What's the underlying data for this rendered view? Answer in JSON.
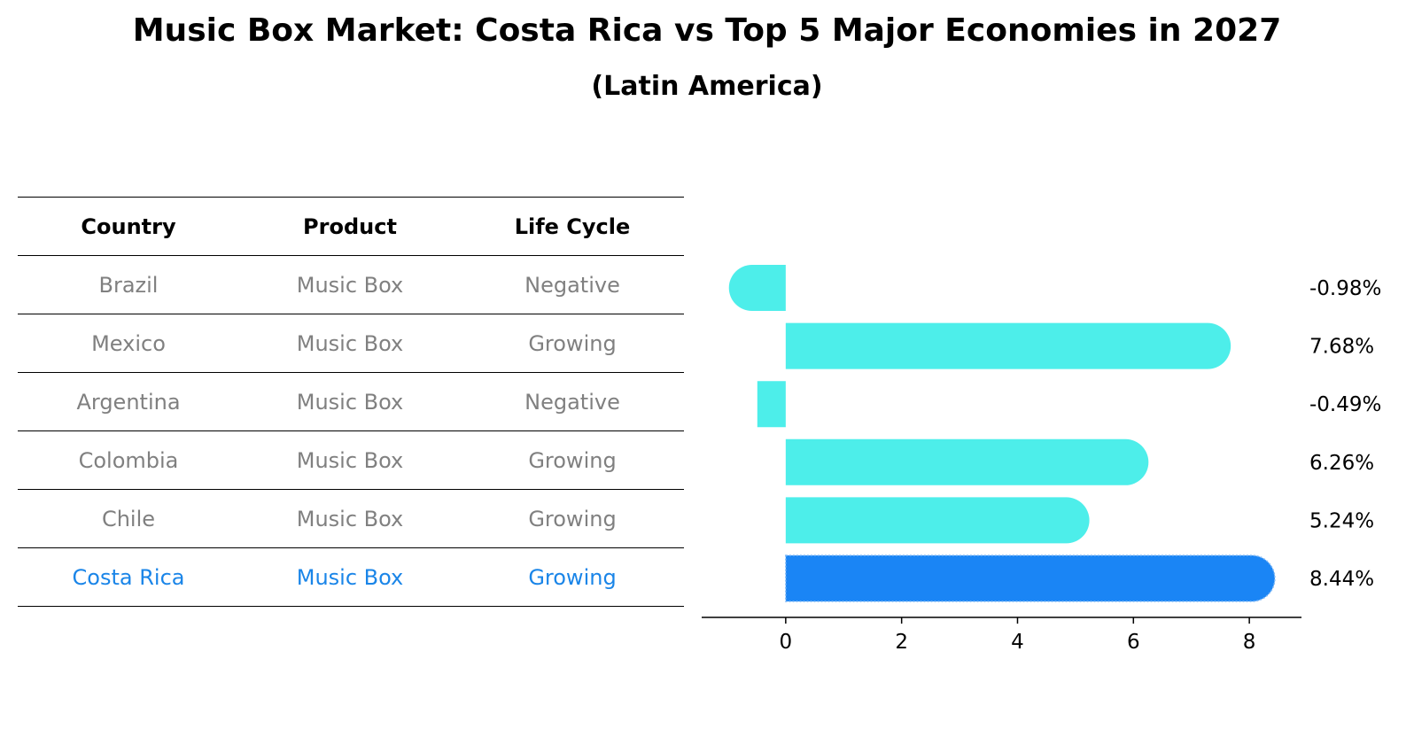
{
  "title": "Music Box Market: Costa Rica vs Top 5 Major Economies in 2027",
  "subtitle": "(Latin America)",
  "table": {
    "headers": [
      "Country",
      "Product",
      "Life Cycle"
    ],
    "rows": [
      [
        "Brazil",
        "Music Box",
        "Negative"
      ],
      [
        "Mexico",
        "Music Box",
        "Growing"
      ],
      [
        "Argentina",
        "Music Box",
        "Negative"
      ],
      [
        "Colombia",
        "Music Box",
        "Growing"
      ],
      [
        "Chile",
        "Music Box",
        "Growing"
      ],
      [
        "Costa Rica",
        "Music Box",
        "Growing"
      ]
    ],
    "highlight_row": 5
  },
  "colors": {
    "bar": "#4deeea",
    "highlight": "#1a85f5",
    "muted_text": "#808080",
    "highlight_text": "#1a85e8"
  },
  "chart_data": {
    "type": "bar",
    "orientation": "horizontal",
    "categories": [
      "Brazil",
      "Mexico",
      "Argentina",
      "Colombia",
      "Chile",
      "Costa Rica"
    ],
    "values": [
      -0.98,
      7.68,
      -0.49,
      6.26,
      5.24,
      8.44
    ],
    "value_labels": [
      "-0.98%",
      "7.68%",
      "-0.49%",
      "6.26%",
      "5.24%",
      "8.44%"
    ],
    "xlim": [
      -1.45,
      8.9
    ],
    "xticks": [
      0,
      2,
      4,
      6,
      8
    ],
    "xtick_labels": [
      "0",
      "2",
      "4",
      "6",
      "8"
    ],
    "highlight_index": 5,
    "grid": false
  }
}
